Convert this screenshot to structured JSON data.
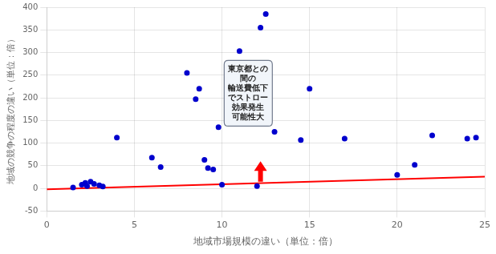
{
  "chart_data": {
    "type": "scatter",
    "x_label": "地域市場規模の違い（単位：倍）",
    "y_label": "地域の競争の程度の違い（単位：倍）",
    "xlim": [
      0,
      25
    ],
    "ylim": [
      -50,
      400
    ],
    "xticks": [
      0,
      5,
      10,
      15,
      20,
      25
    ],
    "yticks": [
      -50,
      0,
      50,
      100,
      150,
      200,
      250,
      300,
      350,
      400
    ],
    "grid": true,
    "series": [
      {
        "type": "scatter",
        "color": "#0000CD",
        "marker": "circle",
        "x": [
          1.5,
          2.0,
          2.2,
          2.3,
          2.5,
          2.7,
          3.0,
          3.2,
          4.0,
          6.0,
          6.5,
          8.0,
          8.5,
          8.7,
          9.0,
          9.2,
          9.5,
          9.8,
          10.0,
          11.0,
          12.0,
          12.2,
          12.5,
          13.0,
          14.5,
          15.0,
          17.0,
          20.0,
          21.0,
          22.0,
          24.0,
          24.5
        ],
        "values": [
          2,
          8,
          12,
          5,
          15,
          10,
          7,
          4,
          112,
          68,
          47,
          255,
          197,
          220,
          63,
          45,
          42,
          135,
          8,
          303,
          5,
          355,
          385,
          125,
          107,
          220,
          110,
          30,
          52,
          117,
          110,
          112
        ]
      },
      {
        "type": "line",
        "color": "red",
        "line_style": "solid",
        "x": [
          0,
          25
        ],
        "values": [
          -2,
          26
        ]
      }
    ],
    "annotations": [
      {
        "text": "東京都との\n間の\n輸送費低下\nでストロー\n効果発生\n可能性大",
        "x": 11.5,
        "y": 210
      }
    ],
    "arrows": [
      {
        "x": 12.2,
        "y_from": 15,
        "y_to": 60,
        "color": "red"
      }
    ]
  }
}
